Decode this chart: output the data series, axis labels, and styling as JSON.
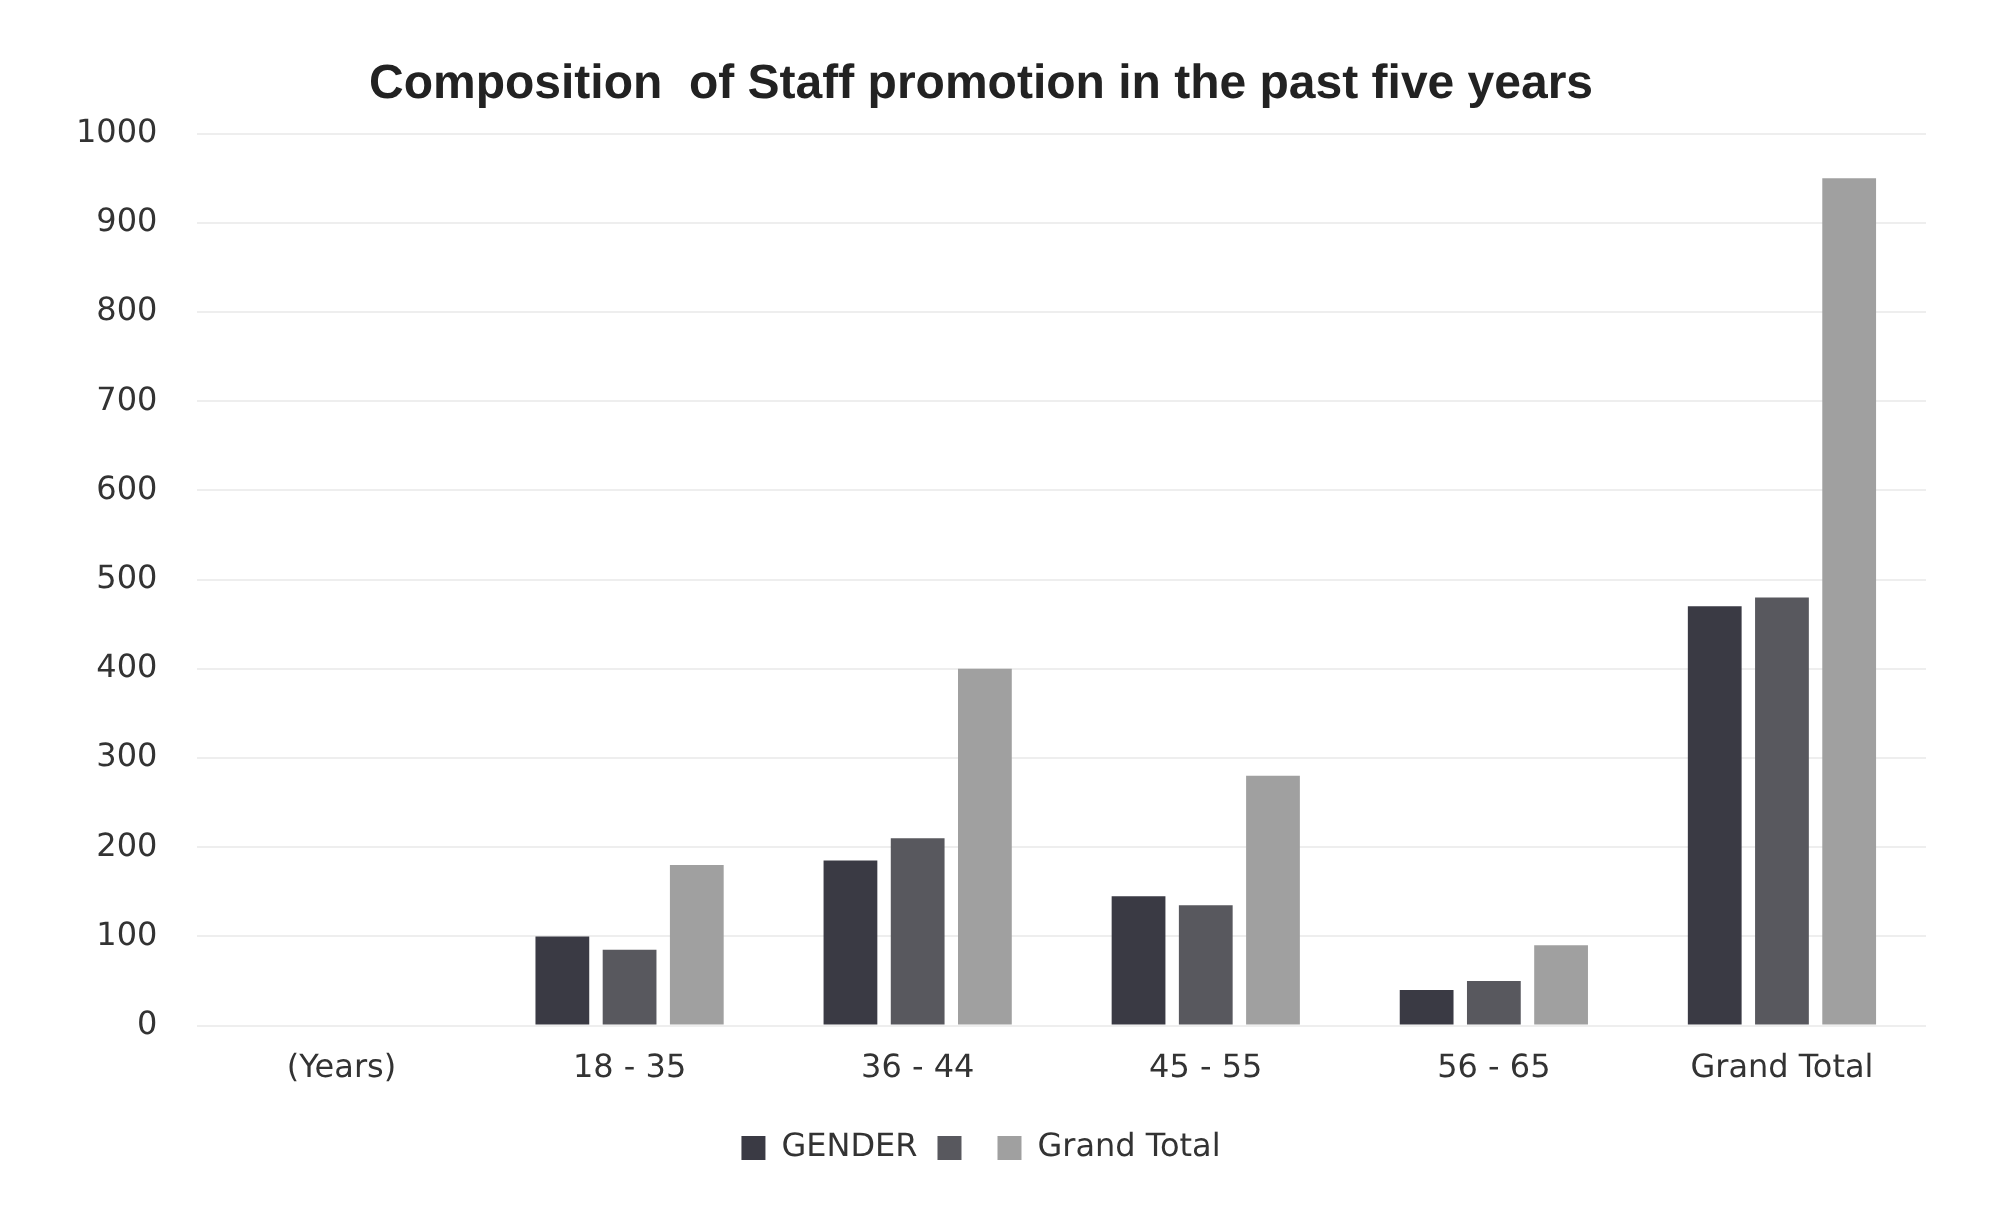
{
  "chart_data": {
    "type": "bar",
    "title": "Composition  of Staff promotion in the past five years",
    "categories": [
      "(Years)",
      "18 - 35",
      "36 - 44",
      "45 - 55",
      "56 - 65",
      "Grand Total"
    ],
    "series": [
      {
        "name": "GENDER",
        "color": "#3a3a44",
        "values": [
          null,
          100,
          185,
          145,
          40,
          470
        ]
      },
      {
        "color": "#58585e",
        "values": [
          null,
          85,
          210,
          135,
          50,
          480
        ]
      },
      {
        "name": "Grand Total",
        "color": "#a0a0a0",
        "values": [
          null,
          180,
          400,
          280,
          90,
          950
        ]
      }
    ],
    "ylim": [
      0,
      1000
    ],
    "yticks": [
      0,
      100,
      200,
      300,
      400,
      500,
      600,
      700,
      800,
      900,
      1000
    ],
    "grid": "y",
    "legend": "bottom"
  }
}
